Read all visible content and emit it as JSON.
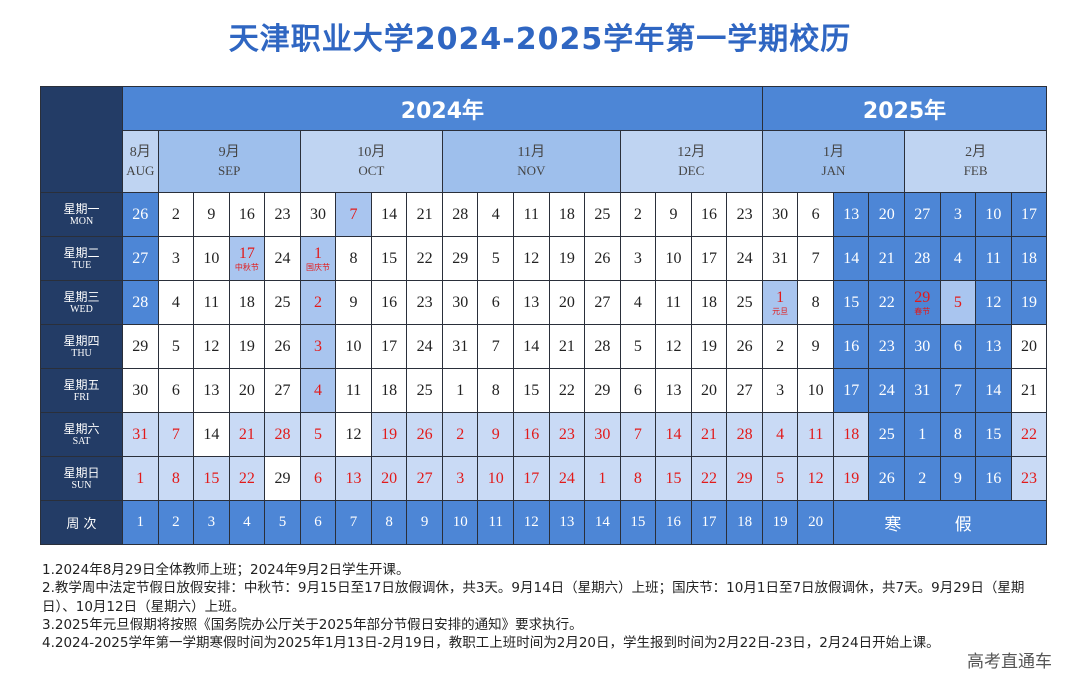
{
  "title": "天津职业大学2024-2025学年第一学期校历",
  "years": {
    "y2024": "2024年",
    "y2025": "2025年"
  },
  "months": [
    {
      "zh": "8月",
      "en": "AUG",
      "span": 1
    },
    {
      "zh": "9月",
      "en": "SEP",
      "span": 4
    },
    {
      "zh": "10月",
      "en": "OCT",
      "span": 4
    },
    {
      "zh": "11月",
      "en": "NOV",
      "span": 5
    },
    {
      "zh": "12月",
      "en": "DEC",
      "span": 4
    },
    {
      "zh": "1月",
      "en": "JAN",
      "span": 4
    },
    {
      "zh": "2月",
      "en": "FEB",
      "span": 4
    }
  ],
  "weekdays": [
    {
      "zh": "星期一",
      "en": "MON"
    },
    {
      "zh": "星期二",
      "en": "TUE"
    },
    {
      "zh": "星期三",
      "en": "WED"
    },
    {
      "zh": "星期四",
      "en": "THU"
    },
    {
      "zh": "星期五",
      "en": "FRI"
    },
    {
      "zh": "星期六",
      "en": "SAT"
    },
    {
      "zh": "星期日",
      "en": "SUN"
    }
  ],
  "week_label": "周 次",
  "rows": [
    [
      "26",
      "2",
      "9",
      "16",
      "23",
      "30",
      "7",
      "14",
      "21",
      "28",
      "4",
      "11",
      "18",
      "25",
      "2",
      "9",
      "16",
      "23",
      "30",
      "6",
      "13",
      "20",
      "27",
      "3",
      "10",
      "17"
    ],
    [
      "27",
      "3",
      "10",
      "17",
      "24",
      "1",
      "8",
      "15",
      "22",
      "29",
      "5",
      "12",
      "19",
      "26",
      "3",
      "10",
      "17",
      "24",
      "31",
      "7",
      "14",
      "21",
      "28",
      "4",
      "11",
      "18"
    ],
    [
      "28",
      "4",
      "11",
      "18",
      "25",
      "2",
      "9",
      "16",
      "23",
      "30",
      "6",
      "13",
      "20",
      "27",
      "4",
      "11",
      "18",
      "25",
      "1",
      "8",
      "15",
      "22",
      "29",
      "5",
      "12",
      "19"
    ],
    [
      "29",
      "5",
      "12",
      "19",
      "26",
      "3",
      "10",
      "17",
      "24",
      "31",
      "7",
      "14",
      "21",
      "28",
      "5",
      "12",
      "19",
      "26",
      "2",
      "9",
      "16",
      "23",
      "30",
      "6",
      "13",
      "20"
    ],
    [
      "30",
      "6",
      "13",
      "20",
      "27",
      "4",
      "11",
      "18",
      "25",
      "1",
      "8",
      "15",
      "22",
      "29",
      "6",
      "13",
      "20",
      "27",
      "3",
      "10",
      "17",
      "24",
      "31",
      "7",
      "14",
      "21"
    ],
    [
      "31",
      "7",
      "14",
      "21",
      "28",
      "5",
      "12",
      "19",
      "26",
      "2",
      "9",
      "16",
      "23",
      "30",
      "7",
      "14",
      "21",
      "28",
      "4",
      "11",
      "18",
      "25",
      "1",
      "8",
      "15",
      "22"
    ],
    [
      "1",
      "8",
      "15",
      "22",
      "29",
      "6",
      "13",
      "20",
      "27",
      "3",
      "10",
      "17",
      "24",
      "1",
      "8",
      "15",
      "22",
      "29",
      "5",
      "12",
      "19",
      "26",
      "2",
      "9",
      "16",
      "23"
    ]
  ],
  "cell_notes": {
    "1-3": "中秋节",
    "1-5": "国庆节",
    "2-18": "元旦",
    "2-22": "春节"
  },
  "weeks": [
    "1",
    "2",
    "3",
    "4",
    "5",
    "6",
    "7",
    "8",
    "9",
    "10",
    "11",
    "12",
    "13",
    "14",
    "15",
    "16",
    "17",
    "18",
    "19",
    "20"
  ],
  "winter_label": "寒 假",
  "notes": [
    "1.2024年8月29日全体教师上班；2024年9月2日学生开课。",
    "2.教学周中法定节假日放假安排：中秋节：9月15日至17日放假调休，共3天。9月14日（星期六）上班；国庆节：10月1日至7日放假调休，共7天。9月29日（星期日）、10月12日（星期六）上班。",
    "3.2025年元旦假期将按照《国务院办公厅关于2025年部分节假日安排的通知》要求执行。",
    "4.2024-2025学年第一学期寒假时间为2025年1月13日-2月19日，教职工上班时间为2月20日，学生报到时间为2月22日-23日，2月24日开始上课。"
  ],
  "watermark": "高考直通车"
}
